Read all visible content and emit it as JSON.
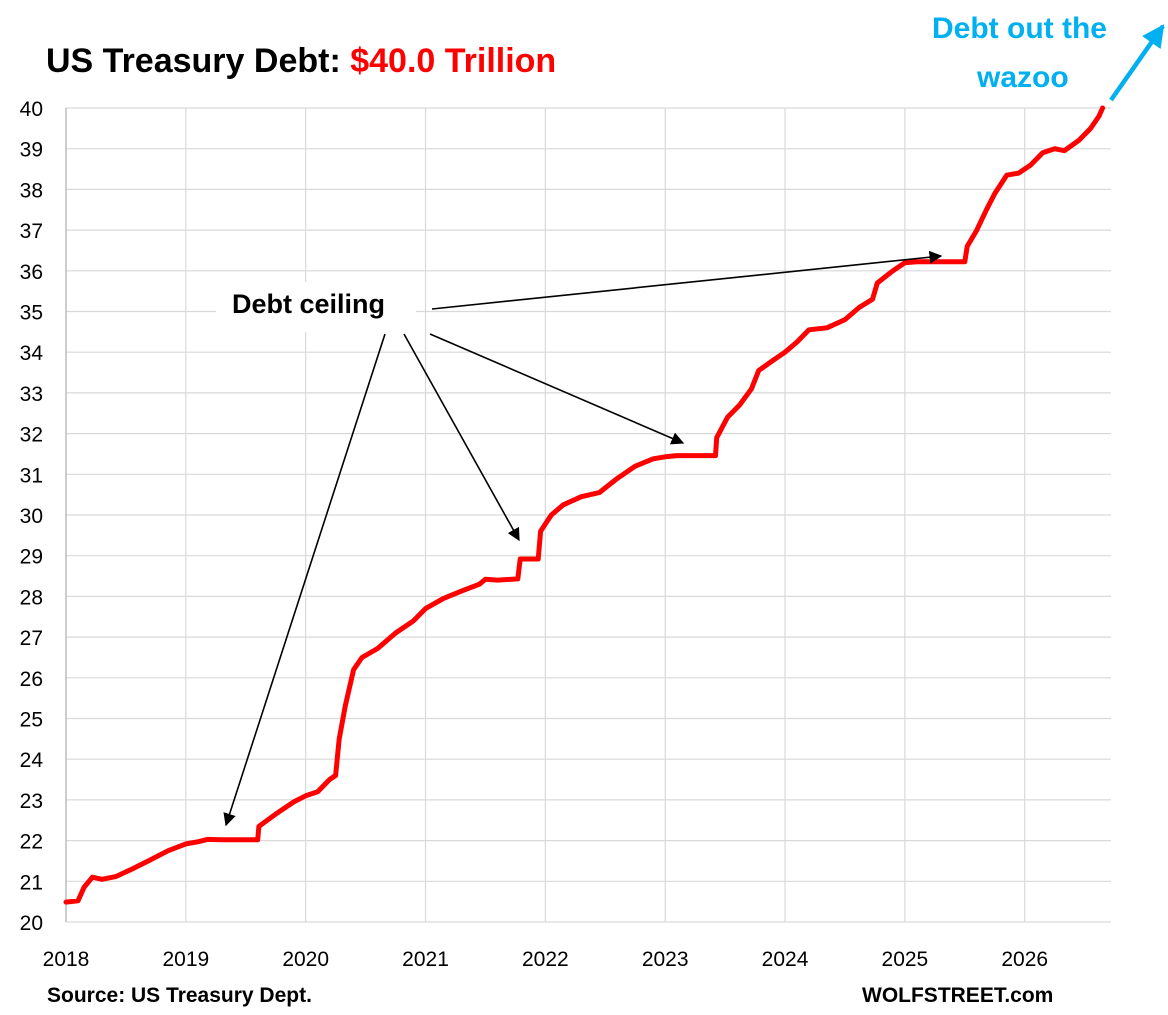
{
  "title": {
    "prefix": "US Treasury Debt: ",
    "highlight": "$40.0 Trillion",
    "highlight_color": "#ff0000"
  },
  "source_note": "Source: US Treasury Dept.",
  "brand": "WOLFSTREET.com",
  "annotations": {
    "debt_ceiling_label": "Debt ceiling",
    "wazoo_line1": "Debt out the",
    "wazoo_line2": "wazoo",
    "wazoo_color": "#00b0f0"
  },
  "chart_data": {
    "type": "line",
    "title": "US Treasury Debt: $40.0 Trillion",
    "xlabel": "",
    "ylabel": "",
    "xlim": [
      2018,
      2026.72
    ],
    "ylim": [
      20,
      40
    ],
    "x_ticks": [
      "2018",
      "2019",
      "2020",
      "2021",
      "2022",
      "2023",
      "2024",
      "2025",
      "2026"
    ],
    "y_ticks": [
      "20",
      "21",
      "22",
      "23",
      "24",
      "25",
      "26",
      "27",
      "28",
      "29",
      "30",
      "31",
      "32",
      "33",
      "34",
      "35",
      "36",
      "37",
      "38",
      "39",
      "40"
    ],
    "grid": true,
    "series": [
      {
        "color": "#ff0000",
        "points": [
          [
            2018.0,
            20.49
          ],
          [
            2018.1,
            20.52
          ],
          [
            2018.15,
            20.85
          ],
          [
            2018.22,
            21.1
          ],
          [
            2018.3,
            21.05
          ],
          [
            2018.42,
            21.12
          ],
          [
            2018.55,
            21.3
          ],
          [
            2018.7,
            21.52
          ],
          [
            2018.85,
            21.75
          ],
          [
            2019.0,
            21.92
          ],
          [
            2019.1,
            21.97
          ],
          [
            2019.18,
            22.03
          ],
          [
            2019.3,
            22.02
          ],
          [
            2019.5,
            22.02
          ],
          [
            2019.6,
            22.02
          ],
          [
            2019.61,
            22.35
          ],
          [
            2019.75,
            22.65
          ],
          [
            2019.9,
            22.95
          ],
          [
            2020.0,
            23.1
          ],
          [
            2020.1,
            23.2
          ],
          [
            2020.2,
            23.5
          ],
          [
            2020.25,
            23.6
          ],
          [
            2020.28,
            24.5
          ],
          [
            2020.33,
            25.3
          ],
          [
            2020.4,
            26.2
          ],
          [
            2020.47,
            26.5
          ],
          [
            2020.6,
            26.72
          ],
          [
            2020.75,
            27.1
          ],
          [
            2020.9,
            27.4
          ],
          [
            2021.0,
            27.7
          ],
          [
            2021.15,
            27.95
          ],
          [
            2021.3,
            28.13
          ],
          [
            2021.45,
            28.3
          ],
          [
            2021.5,
            28.42
          ],
          [
            2021.6,
            28.4
          ],
          [
            2021.77,
            28.43
          ],
          [
            2021.79,
            28.92
          ],
          [
            2021.94,
            28.92
          ],
          [
            2021.96,
            29.6
          ],
          [
            2022.05,
            30.0
          ],
          [
            2022.15,
            30.25
          ],
          [
            2022.3,
            30.45
          ],
          [
            2022.45,
            30.55
          ],
          [
            2022.6,
            30.9
          ],
          [
            2022.75,
            31.2
          ],
          [
            2022.9,
            31.38
          ],
          [
            2023.0,
            31.43
          ],
          [
            2023.1,
            31.46
          ],
          [
            2023.3,
            31.46
          ],
          [
            2023.42,
            31.46
          ],
          [
            2023.43,
            31.9
          ],
          [
            2023.52,
            32.4
          ],
          [
            2023.62,
            32.7
          ],
          [
            2023.72,
            33.1
          ],
          [
            2023.78,
            33.55
          ],
          [
            2023.9,
            33.8
          ],
          [
            2024.0,
            34.0
          ],
          [
            2024.1,
            34.25
          ],
          [
            2024.2,
            34.55
          ],
          [
            2024.35,
            34.6
          ],
          [
            2024.5,
            34.8
          ],
          [
            2024.62,
            35.1
          ],
          [
            2024.73,
            35.3
          ],
          [
            2024.77,
            35.7
          ],
          [
            2024.9,
            36.0
          ],
          [
            2025.0,
            36.2
          ],
          [
            2025.1,
            36.22
          ],
          [
            2025.3,
            36.22
          ],
          [
            2025.5,
            36.22
          ],
          [
            2025.52,
            36.6
          ],
          [
            2025.6,
            37.0
          ],
          [
            2025.68,
            37.5
          ],
          [
            2025.75,
            37.9
          ],
          [
            2025.85,
            38.35
          ],
          [
            2025.95,
            38.4
          ],
          [
            2026.05,
            38.6
          ],
          [
            2026.15,
            38.9
          ],
          [
            2026.25,
            39.0
          ],
          [
            2026.33,
            38.95
          ],
          [
            2026.45,
            39.2
          ],
          [
            2026.55,
            39.5
          ],
          [
            2026.62,
            39.8
          ],
          [
            2026.65,
            40.0
          ]
        ]
      }
    ]
  }
}
